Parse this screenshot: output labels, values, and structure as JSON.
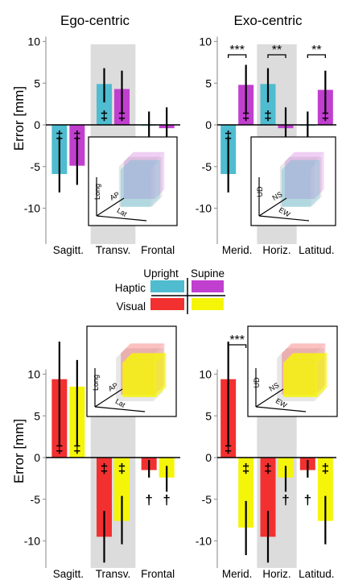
{
  "figure": {
    "titles": [
      "Ego-centric",
      "Exo-centric"
    ],
    "ylabel": "Error [mm]"
  },
  "legend": {
    "col_upright": "Upright",
    "col_supine": "Supine",
    "row_haptic": "Haptic",
    "row_visual": "Visual",
    "colors": {
      "haptic_upright": "#4fbcd0",
      "haptic_supine": "#c13fcf",
      "visual_upright": "#f23030",
      "visual_supine": "#f5f50a"
    }
  },
  "symbols": {
    "double_dagger": "‡",
    "dagger": "†"
  },
  "chart_data": [
    {
      "id": "haptic-ego",
      "type": "bar",
      "title": "Ego-centric",
      "categories": [
        "Sagitt.",
        "Transv.",
        "Frontal"
      ],
      "ylabel": "Error [mm]",
      "ylim": [
        -11,
        11
      ],
      "yticks": [
        -10,
        -5,
        0,
        5,
        10
      ],
      "shaded_category": "Transv.",
      "series": [
        {
          "condition": "Upright",
          "color": "#4fbcd0",
          "values": [
            -5.9,
            4.9,
            -0.1
          ],
          "err_low": [
            -8.1,
            2.7,
            -2.2
          ],
          "err_high": [
            -1.4,
            6.8,
            1.6
          ]
        },
        {
          "condition": "Supine",
          "color": "#c13fcf",
          "values": [
            -4.9,
            4.3,
            -0.4
          ],
          "err_low": [
            -7.2,
            1.3,
            -2.9
          ],
          "err_high": [
            -1.4,
            6.5,
            2.1
          ]
        }
      ],
      "marks": [
        {
          "series": 0,
          "category": 0,
          "symbol": "‡"
        },
        {
          "series": 1,
          "category": 0,
          "symbol": "‡"
        },
        {
          "series": 0,
          "category": 1,
          "symbol": "‡"
        },
        {
          "series": 1,
          "category": 1,
          "symbol": "‡"
        }
      ],
      "significance": [],
      "inset_axes": [
        "Long",
        "AP",
        "Lat"
      ]
    },
    {
      "id": "haptic-exo",
      "type": "bar",
      "title": "Exo-centric",
      "categories": [
        "Merid.",
        "Horiz.",
        "Latitud."
      ],
      "ylim": [
        -11,
        11
      ],
      "yticks": [
        -10,
        -5,
        0,
        5,
        10
      ],
      "shaded_category": "Horiz.",
      "series": [
        {
          "condition": "Upright",
          "color": "#4fbcd0",
          "values": [
            -5.9,
            4.9,
            -0.1
          ],
          "err_low": [
            -8.1,
            2.7,
            -1.8
          ],
          "err_high": [
            -1.4,
            6.8,
            1.6
          ]
        },
        {
          "condition": "Supine",
          "color": "#c13fcf",
          "values": [
            4.8,
            -0.4,
            4.2
          ],
          "err_low": [
            1.3,
            -2.9,
            1.3
          ],
          "err_high": [
            7.2,
            2.1,
            6.5
          ]
        }
      ],
      "marks": [
        {
          "series": 0,
          "category": 0,
          "symbol": "‡"
        },
        {
          "series": 1,
          "category": 0,
          "symbol": "‡"
        },
        {
          "series": 0,
          "category": 1,
          "symbol": "‡"
        },
        {
          "series": 1,
          "category": 2,
          "symbol": "‡"
        }
      ],
      "significance": [
        {
          "category": 0,
          "label": "***"
        },
        {
          "category": 1,
          "label": "**"
        },
        {
          "category": 2,
          "label": "**"
        }
      ],
      "inset_axes": [
        "UD",
        "NS",
        "EW"
      ]
    },
    {
      "id": "visual-ego",
      "type": "bar",
      "categories": [
        "Sagitt.",
        "Transv.",
        "Frontal"
      ],
      "ylim": [
        -12.5,
        14.5
      ],
      "yticks": [
        -10,
        -5,
        0,
        5,
        10
      ],
      "shaded_category": "Transv.",
      "series": [
        {
          "condition": "Upright",
          "color": "#f23030",
          "values": [
            9.4,
            -9.5,
            -1.5
          ],
          "err_low": [
            1.4,
            -12.6,
            -2.4
          ],
          "err_high": [
            13.9,
            -6.4,
            -0.3
          ]
        },
        {
          "condition": "Supine",
          "color": "#f5f50a",
          "values": [
            8.5,
            -7.6,
            -2.4
          ],
          "err_low": [
            1.4,
            -10.4,
            -4.1
          ],
          "err_high": [
            11.7,
            -4.6,
            -1.0
          ]
        }
      ],
      "marks": [
        {
          "series": 0,
          "category": 0,
          "symbol": "‡"
        },
        {
          "series": 1,
          "category": 0,
          "symbol": "‡"
        },
        {
          "series": 0,
          "category": 1,
          "symbol": "‡"
        },
        {
          "series": 1,
          "category": 1,
          "symbol": "‡"
        },
        {
          "series": 0,
          "category": 2,
          "symbol": "†"
        },
        {
          "series": 1,
          "category": 2,
          "symbol": "†"
        }
      ],
      "significance": [],
      "inset_axes": [
        "Long",
        "AP",
        "Lat"
      ]
    },
    {
      "id": "visual-exo",
      "type": "bar",
      "categories": [
        "Merid.",
        "Horiz.",
        "Latitud."
      ],
      "ylim": [
        -12.5,
        14.5
      ],
      "yticks": [
        -10,
        -5,
        0,
        5,
        10
      ],
      "shaded_category": "Horiz.",
      "series": [
        {
          "condition": "Upright",
          "color": "#f23030",
          "values": [
            9.4,
            -9.5,
            -1.5
          ],
          "err_low": [
            1.4,
            -12.6,
            -2.4
          ],
          "err_high": [
            13.9,
            -6.4,
            -0.3
          ]
        },
        {
          "condition": "Supine",
          "color": "#f5f50a",
          "values": [
            -8.4,
            -2.4,
            -7.6
          ],
          "err_low": [
            -11.7,
            -4.1,
            -10.4
          ],
          "err_high": [
            -5.2,
            -1.0,
            -4.6
          ]
        }
      ],
      "marks": [
        {
          "series": 0,
          "category": 0,
          "symbol": "‡"
        },
        {
          "series": 1,
          "category": 0,
          "symbol": "‡"
        },
        {
          "series": 0,
          "category": 1,
          "symbol": "‡"
        },
        {
          "series": 1,
          "category": 1,
          "symbol": "†"
        },
        {
          "series": 0,
          "category": 2,
          "symbol": "†"
        },
        {
          "series": 1,
          "category": 2,
          "symbol": "‡"
        }
      ],
      "significance": [
        {
          "category": 0,
          "label": "***"
        },
        {
          "category": 1,
          "label": "***"
        },
        {
          "category": 2,
          "label": "**"
        }
      ],
      "inset_axes": [
        "UD",
        "NS",
        "EW"
      ]
    }
  ]
}
